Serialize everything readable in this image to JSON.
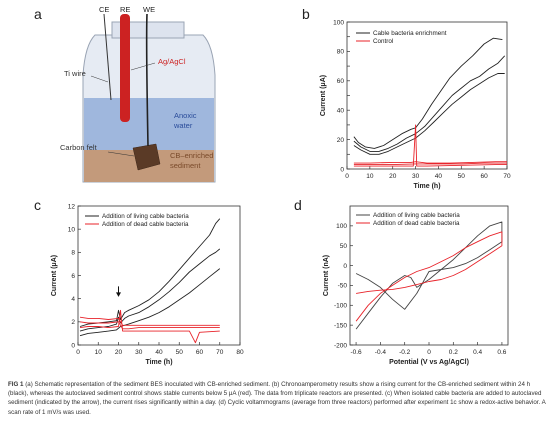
{
  "panels": {
    "a": {
      "letter": "a",
      "labels": {
        "ce": "CE",
        "re": "RE",
        "we": "WE",
        "ti_wire": "Ti wire",
        "ag_agcl": "Ag/AgCl",
        "anoxic": "Anoxic",
        "water": "water",
        "carbon_felt": "Carbon felt",
        "cb_enriched": "CB–enriched",
        "sediment": "sediment"
      },
      "colors": {
        "electrode_red": "#cc2222",
        "water": "#9fb7dd",
        "sediment": "#c39a7b",
        "felt": "#5a3a26"
      }
    },
    "b": {
      "letter": "b"
    },
    "c": {
      "letter": "c"
    },
    "d": {
      "letter": "d"
    }
  },
  "caption": {
    "fig": "FIG 1",
    "text": " (a) Schematic representation of the sediment BES inoculated with CB-enriched sediment. (b) Chronoamperometry results show a rising current for the CB-enriched sediment within 24 h (black), whereas the autoclaved sediment control shows stable currents below 5 μA (red). The data from triplicate reactors are presented. (c) When isolated cable bacteria are added to autoclaved sediment (indicated by the arrow), the current rises significantly within a day. (d) Cyclic voltammograms (average from three reactors) performed after experiment 1c show a redox-active behavior. A scan rate of 1 mV/s was used."
  },
  "chart_data": [
    {
      "panel": "b",
      "type": "line",
      "xlabel": "Time (h)",
      "ylabel": "Current (μA)",
      "xlim": [
        0,
        70
      ],
      "ylim": [
        0,
        100
      ],
      "xticks": [
        0,
        10,
        20,
        30,
        40,
        50,
        60,
        70
      ],
      "yticks": [
        0,
        10,
        20,
        30,
        40,
        50,
        60,
        70,
        80,
        90,
        100
      ],
      "legend": "top-left",
      "grid": false,
      "series": [
        {
          "name": "Cable bacteria enrichment",
          "color": "#222222",
          "x": [
            3,
            5,
            8,
            12,
            16,
            20,
            24,
            28,
            30,
            33,
            37,
            41,
            45,
            50,
            55,
            60,
            64,
            68
          ],
          "y": [
            22,
            18,
            15,
            14,
            16,
            20,
            24,
            27,
            28,
            34,
            44,
            53,
            62,
            70,
            77,
            85,
            89,
            88
          ]
        },
        {
          "name": "",
          "color": "#222222",
          "x": [
            3,
            6,
            10,
            14,
            18,
            22,
            26,
            30,
            34,
            38,
            42,
            46,
            50,
            54,
            58,
            62,
            66,
            69
          ],
          "y": [
            19,
            15,
            12,
            12,
            14,
            17,
            21,
            24,
            29,
            36,
            43,
            50,
            55,
            60,
            63,
            68,
            72,
            77
          ]
        },
        {
          "name": "",
          "color": "#222222",
          "x": [
            3,
            6,
            10,
            14,
            18,
            22,
            26,
            30,
            34,
            38,
            42,
            46,
            50,
            54,
            58,
            62,
            66,
            69
          ],
          "y": [
            16,
            13,
            10,
            10,
            12,
            15,
            18,
            21,
            26,
            32,
            38,
            44,
            49,
            54,
            58,
            62,
            65,
            65
          ]
        },
        {
          "name": "Control",
          "color": "#e8232a",
          "x": [
            3,
            10,
            20,
            28,
            30,
            35,
            45,
            55,
            65,
            70
          ],
          "y": [
            4,
            4,
            4.5,
            4.5,
            5,
            4,
            4,
            4.5,
            5,
            5
          ]
        },
        {
          "name": "",
          "color": "#e8232a",
          "x": [
            3,
            10,
            20,
            30,
            40,
            50,
            60,
            70
          ],
          "y": [
            3,
            3,
            3,
            3.5,
            3.5,
            3.5,
            4,
            4
          ]
        },
        {
          "name": "",
          "color": "#e8232a",
          "x": [
            3,
            10,
            20,
            29,
            30,
            30.5,
            35,
            50,
            65,
            70
          ],
          "y": [
            2,
            2,
            2,
            2,
            30,
            2,
            2,
            2.5,
            3,
            3
          ]
        }
      ]
    },
    {
      "panel": "c",
      "type": "line",
      "xlabel": "Time (h)",
      "ylabel": "Current (μA)",
      "xlim": [
        0,
        80
      ],
      "ylim": [
        0,
        12
      ],
      "xticks": [
        0,
        10,
        20,
        30,
        40,
        50,
        60,
        70,
        80
      ],
      "yticks": [
        0,
        2,
        4,
        6,
        8,
        10,
        12
      ],
      "legend": "top-left",
      "grid": false,
      "annotations": [
        {
          "type": "arrow",
          "x": 20,
          "y": 4.2
        }
      ],
      "series": [
        {
          "name": "Addition of living cable bacteria",
          "color": "#222222",
          "x": [
            1,
            5,
            10,
            15,
            19,
            20,
            21,
            23,
            25,
            30,
            35,
            40,
            45,
            50,
            55,
            60,
            65,
            68,
            70
          ],
          "y": [
            1.6,
            1.8,
            1.9,
            2.0,
            2.1,
            3.0,
            2.2,
            2.8,
            3.0,
            3.4,
            3.9,
            4.6,
            5.5,
            6.5,
            7.5,
            8.5,
            9.5,
            10.5,
            10.9
          ]
        },
        {
          "name": "",
          "color": "#222222",
          "x": [
            1,
            5,
            10,
            15,
            19,
            20,
            21,
            23,
            25,
            30,
            35,
            40,
            45,
            50,
            55,
            60,
            65,
            68,
            70
          ],
          "y": [
            1.2,
            1.4,
            1.5,
            1.6,
            1.8,
            2.4,
            1.9,
            2.3,
            2.5,
            2.8,
            3.3,
            3.9,
            4.6,
            5.4,
            6.3,
            7.0,
            7.7,
            8.0,
            8.3
          ]
        },
        {
          "name": "",
          "color": "#222222",
          "x": [
            1,
            5,
            10,
            15,
            19,
            21,
            25,
            30,
            35,
            40,
            45,
            50,
            55,
            60,
            65,
            70
          ],
          "y": [
            0.8,
            1.0,
            1.1,
            1.2,
            1.3,
            1.6,
            1.8,
            2.1,
            2.4,
            2.8,
            3.3,
            3.9,
            4.5,
            5.2,
            5.9,
            6.6
          ]
        },
        {
          "name": "Addition of dead cable bacteria",
          "color": "#e8232a",
          "x": [
            1,
            5,
            10,
            15,
            20,
            22,
            25,
            30,
            40,
            50,
            60,
            70
          ],
          "y": [
            2.4,
            2.3,
            2.3,
            2.2,
            2.3,
            1.7,
            1.7,
            1.7,
            1.7,
            1.7,
            1.7,
            1.7
          ]
        },
        {
          "name": "",
          "color": "#e8232a",
          "x": [
            1,
            5,
            10,
            15,
            20,
            22,
            25,
            30,
            40,
            50,
            60,
            70
          ],
          "y": [
            2.0,
            1.9,
            1.9,
            1.9,
            2.0,
            1.4,
            1.4,
            1.5,
            1.5,
            1.5,
            1.5,
            1.5
          ]
        },
        {
          "name": "",
          "color": "#e8232a",
          "x": [
            1,
            5,
            10,
            15,
            20,
            21,
            22,
            25,
            30,
            40,
            50,
            55,
            58,
            60,
            70
          ],
          "y": [
            1.5,
            1.6,
            1.6,
            1.5,
            1.6,
            3.0,
            1.2,
            1.2,
            1.2,
            1.2,
            1.2,
            1.2,
            0.2,
            1.1,
            1.2
          ]
        }
      ]
    },
    {
      "panel": "d",
      "type": "line",
      "xlabel": "Potential (V vs Ag/AgCl)",
      "ylabel": "Current (nA)",
      "xlim": [
        -0.65,
        0.65
      ],
      "ylim": [
        -200,
        150
      ],
      "xticks": [
        -0.6,
        -0.4,
        -0.2,
        0.0,
        0.2,
        0.4,
        0.6
      ],
      "yticks": [
        -200,
        -150,
        -100,
        -50,
        0,
        50,
        100
      ],
      "legend": "top-left",
      "grid": false,
      "series": [
        {
          "name": "Addition of living cable bacteria",
          "color": "#444444",
          "x": [
            -0.6,
            -0.5,
            -0.4,
            -0.3,
            -0.2,
            -0.15,
            -0.1,
            0.0,
            0.1,
            0.2,
            0.3,
            0.4,
            0.5,
            0.6,
            0.6,
            0.5,
            0.4,
            0.3,
            0.2,
            0.1,
            0.0,
            -0.1,
            -0.2,
            -0.3,
            -0.4,
            -0.5,
            -0.6
          ],
          "y": [
            -160,
            -120,
            -80,
            -45,
            -25,
            -30,
            -55,
            -35,
            -10,
            15,
            45,
            75,
            100,
            110,
            60,
            40,
            20,
            5,
            -5,
            -10,
            -15,
            -70,
            -110,
            -85,
            -55,
            -35,
            -20
          ]
        },
        {
          "name": "Addition of dead cable bacteria",
          "color": "#e8232a",
          "x": [
            -0.6,
            -0.5,
            -0.4,
            -0.3,
            -0.2,
            -0.1,
            0.0,
            0.1,
            0.2,
            0.3,
            0.4,
            0.5,
            0.6,
            0.6,
            0.5,
            0.4,
            0.3,
            0.2,
            0.1,
            0.0,
            -0.1,
            -0.2,
            -0.3,
            -0.4,
            -0.5,
            -0.6
          ],
          "y": [
            -140,
            -100,
            -70,
            -50,
            -30,
            -15,
            -5,
            10,
            25,
            45,
            60,
            75,
            85,
            50,
            30,
            10,
            -10,
            -25,
            -35,
            -40,
            -48,
            -55,
            -60,
            -62,
            -65,
            -70
          ]
        }
      ]
    }
  ]
}
